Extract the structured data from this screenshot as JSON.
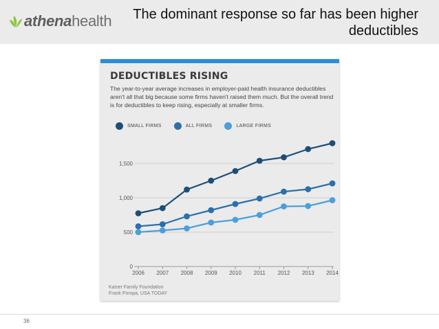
{
  "header": {
    "logo_text_bold": "athena",
    "logo_text_light": "health",
    "title": "The dominant response so far has been higher deductibles"
  },
  "colors": {
    "accent_bar": "#2a8fd6",
    "logo_leaf": "#8cc63f",
    "small_firms": "#1d4e78",
    "all_firms": "#2c6fab",
    "large_firms": "#4a9fdc"
  },
  "chart_data": {
    "type": "line",
    "title": "DEDUCTIBLES RISING",
    "subtitle": "The year-to-year average increases in employer-paid health insurance deductibles aren't all that big because some firms haven't raised them much. But the overall trend is for deductibles to keep rising, especially at smaller firms.",
    "x": [
      "2006",
      "2007",
      "2008",
      "2009",
      "2010",
      "2011",
      "2012",
      "2013",
      "2014"
    ],
    "series": [
      {
        "name": "SMALL FIRMS",
        "color": "#1d4e78",
        "values": [
          775,
          850,
          1120,
          1250,
          1390,
          1540,
          1590,
          1710,
          1795
        ]
      },
      {
        "name": "ALL FIRMS",
        "color": "#2c6fab",
        "values": [
          585,
          615,
          730,
          820,
          910,
          990,
          1090,
          1125,
          1210
        ]
      },
      {
        "name": "LARGE FIRMS",
        "color": "#4a9fdc",
        "values": [
          500,
          525,
          555,
          640,
          680,
          750,
          875,
          880,
          965
        ]
      }
    ],
    "y_ticks": [
      "0",
      "500",
      "1,000",
      "1,500"
    ],
    "y_tick_values": [
      0,
      500,
      1000,
      1500
    ],
    "ylim": [
      0,
      1850
    ],
    "grid": "horizontal",
    "legend_placement": "top-left",
    "source": [
      "Kaiser Family Foundation",
      "Frank Pompa, USA TODAY"
    ]
  },
  "footer": {
    "page_number": "36"
  }
}
